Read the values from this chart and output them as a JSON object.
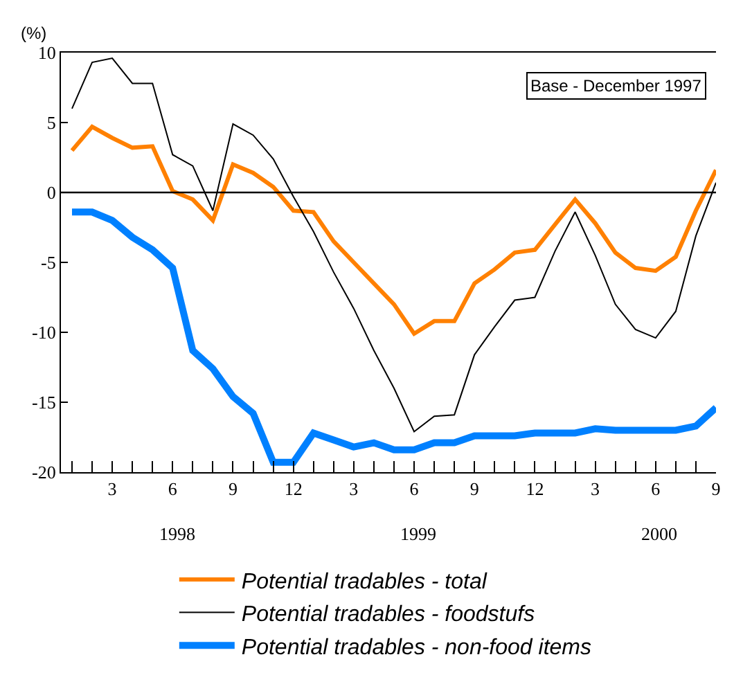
{
  "chart_data": {
    "type": "line",
    "ylabel": "(%)",
    "categories": [
      null,
      null,
      "3",
      null,
      null,
      "6",
      null,
      null,
      "9",
      null,
      null,
      "12",
      null,
      null,
      "3",
      null,
      null,
      "6",
      null,
      null,
      "9",
      null,
      null,
      "12",
      null,
      null,
      "3",
      null,
      null,
      "6",
      null,
      null,
      "9"
    ],
    "series": [
      {
        "name": "Potential tradables - total",
        "color": "#ff8000",
        "values": [
          3.0,
          4.7,
          3.9,
          3.2,
          3.3,
          0.1,
          -0.5,
          -2.0,
          2.0,
          1.4,
          0.4,
          -1.3,
          -1.4,
          -3.5,
          -5.0,
          -6.5,
          -8.0,
          -10.1,
          -9.2,
          -9.2,
          -6.5,
          -5.5,
          -4.3,
          -4.1,
          -2.3,
          -0.5,
          -2.2,
          -4.3,
          -5.4,
          -5.6,
          -4.6,
          -1.3,
          1.6
        ]
      },
      {
        "name": "Potential tradables - foodstufs",
        "color": "#000000",
        "values": [
          6.0,
          9.3,
          9.6,
          7.8,
          7.8,
          2.7,
          1.9,
          -1.3,
          4.9,
          4.1,
          2.4,
          -0.3,
          -2.8,
          -5.7,
          -8.3,
          -11.3,
          -14.0,
          -17.1,
          -16.0,
          -15.9,
          -11.6,
          -9.6,
          -7.7,
          -7.5,
          -4.2,
          -1.4,
          -4.5,
          -8.0,
          -9.8,
          -10.4,
          -8.5,
          -3.1,
          0.7
        ]
      },
      {
        "name": "Potential tradables - non-food items",
        "color": "#0080ff",
        "values": [
          -1.4,
          -1.4,
          -2.0,
          -3.2,
          -4.1,
          -5.4,
          -11.3,
          -12.6,
          -14.6,
          -15.8,
          -19.3,
          -19.3,
          -17.2,
          -17.7,
          -18.2,
          -17.9,
          -18.4,
          -18.4,
          -17.9,
          -17.9,
          -17.4,
          -17.4,
          -17.4,
          -17.2,
          -17.2,
          -17.2,
          -16.9,
          -17.0,
          -17.0,
          -17.0,
          -17.0,
          -16.7,
          -15.4
        ]
      }
    ],
    "ylim": [
      -20,
      10
    ],
    "yticks": [
      -20,
      -15,
      -10,
      -5,
      0,
      5,
      10
    ],
    "ref_lines": [
      {
        "axis": "y",
        "value": 0,
        "color": "#000000"
      }
    ],
    "annotations": [
      "Base - December 1997",
      "1998",
      "1999",
      "2000"
    ],
    "legend": "bottom",
    "marker": "none",
    "line_style": "solid"
  }
}
